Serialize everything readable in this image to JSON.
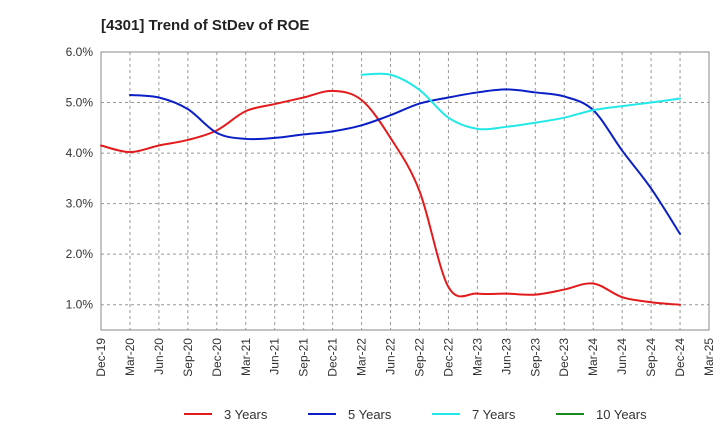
{
  "chart_data": {
    "type": "line",
    "title": "[4301]  Trend of StDev of ROE",
    "xlabel": "",
    "ylabel": "",
    "x": [
      "Dec-19",
      "Mar-20",
      "Jun-20",
      "Sep-20",
      "Dec-20",
      "Mar-21",
      "Jun-21",
      "Sep-21",
      "Dec-21",
      "Mar-22",
      "Jun-22",
      "Sep-22",
      "Dec-22",
      "Mar-23",
      "Jun-23",
      "Sep-23",
      "Dec-23",
      "Mar-24",
      "Jun-24",
      "Sep-24",
      "Dec-24",
      "Mar-25"
    ],
    "ylim": [
      0.5,
      6.0
    ],
    "yticks": [
      1.0,
      2.0,
      3.0,
      4.0,
      5.0,
      6.0
    ],
    "ytick_labels": [
      "1.0%",
      "2.0%",
      "3.0%",
      "4.0%",
      "5.0%",
      "6.0%"
    ],
    "grid": true,
    "legend_position": "bottom",
    "series": [
      {
        "name": "3 Years",
        "color": "#e31a1c",
        "values": [
          4.15,
          4.02,
          4.15,
          4.26,
          4.45,
          4.83,
          4.97,
          5.1,
          5.23,
          5.05,
          4.3,
          3.25,
          1.35,
          1.22,
          1.22,
          1.2,
          1.3,
          1.42,
          1.15,
          1.05,
          1.0,
          null
        ]
      },
      {
        "name": "5 Years",
        "color": "#0a1fc6",
        "values": [
          null,
          5.15,
          5.1,
          4.87,
          4.4,
          4.28,
          4.3,
          4.37,
          4.43,
          4.55,
          4.75,
          4.98,
          5.1,
          5.2,
          5.26,
          5.2,
          5.12,
          4.85,
          4.05,
          3.3,
          2.4,
          null
        ]
      },
      {
        "name": "7 Years",
        "color": "#22e8e8",
        "values": [
          null,
          null,
          null,
          null,
          null,
          null,
          null,
          null,
          null,
          5.55,
          5.55,
          5.25,
          4.7,
          4.48,
          4.52,
          4.6,
          4.7,
          4.85,
          4.93,
          5.0,
          5.08,
          null
        ]
      },
      {
        "name": "10 Years",
        "color": "#1a8a1a",
        "values": [
          null,
          null,
          null,
          null,
          null,
          null,
          null,
          null,
          null,
          null,
          null,
          null,
          null,
          null,
          null,
          null,
          null,
          null,
          null,
          null,
          null,
          null
        ]
      }
    ]
  }
}
